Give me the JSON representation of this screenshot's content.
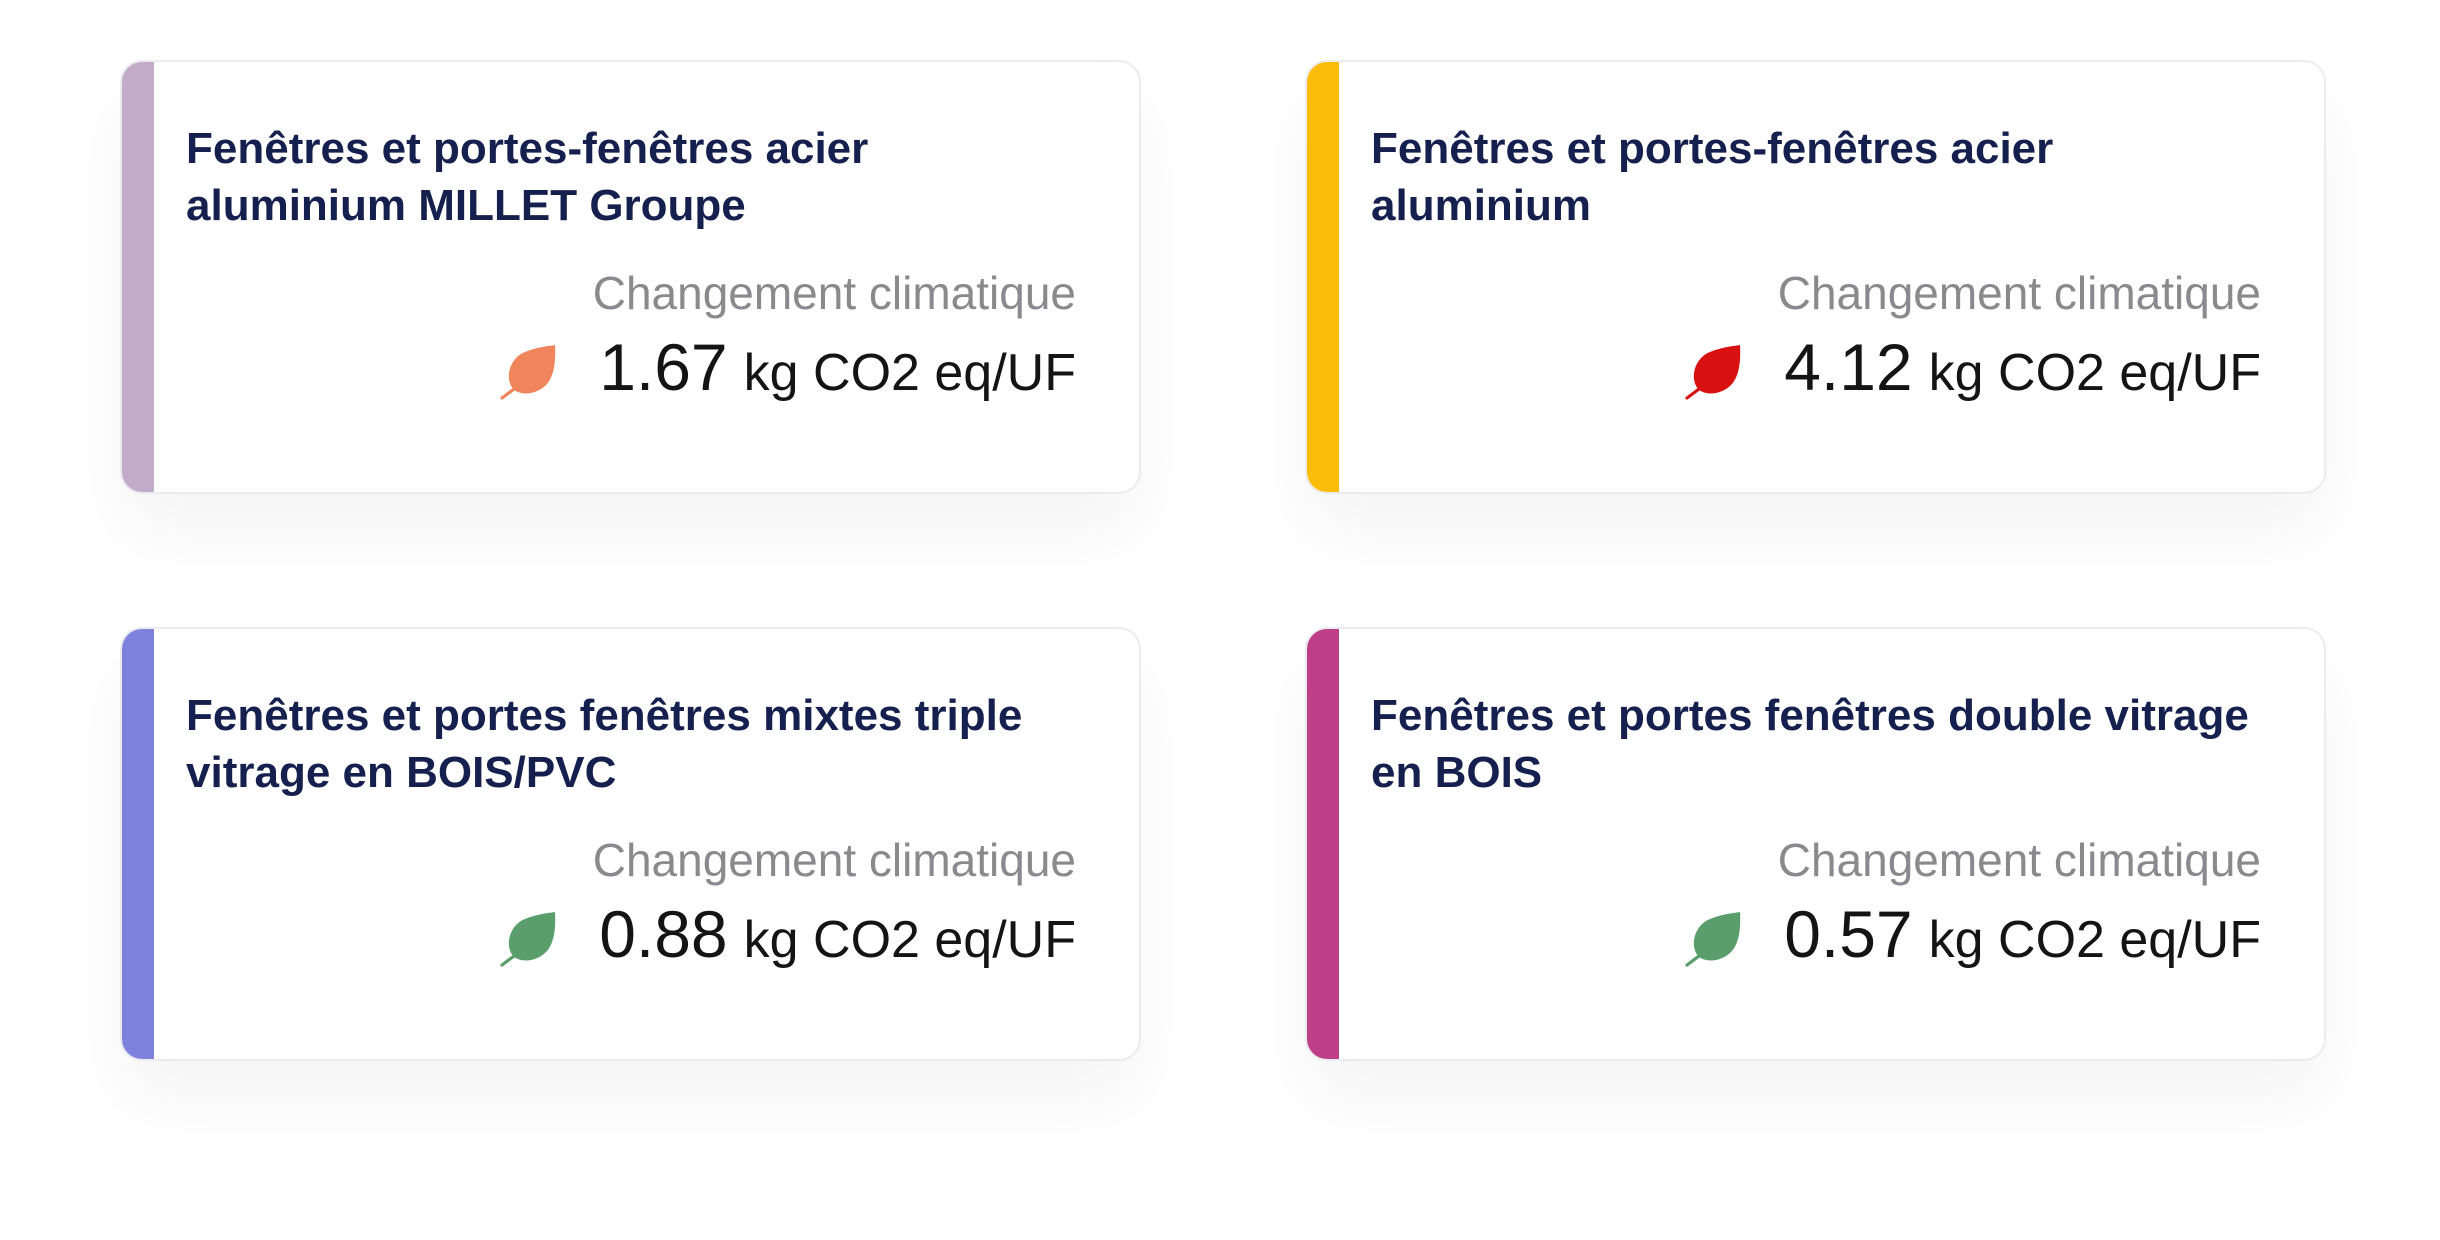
{
  "metric_label": "Changement climatique",
  "unit": "kg CO2 eq/UF",
  "cards": [
    {
      "title": "Fenêtres et portes-fenêtres acier aluminium MILLET Groupe",
      "value": "1.67",
      "accent_color": "#c2abc9",
      "leaf_color": "#f0845a",
      "icon": "leaf-icon"
    },
    {
      "title": "Fenêtres et portes-fenêtres acier aluminium",
      "value": "4.12",
      "accent_color": "#fcbc0a",
      "leaf_color": "#d91010",
      "icon": "leaf-icon"
    },
    {
      "title": "Fenêtres et portes fenêtres mixtes triple vitrage en BOIS/PVC",
      "value": "0.88",
      "accent_color": "#7f82dc",
      "leaf_color": "#5a9e6c",
      "icon": "leaf-icon"
    },
    {
      "title": "Fenêtres et portes fenêtres double vitrage en BOIS",
      "value": "0.57",
      "accent_color": "#bc3f87",
      "leaf_color": "#5a9e6c",
      "icon": "leaf-icon"
    }
  ]
}
